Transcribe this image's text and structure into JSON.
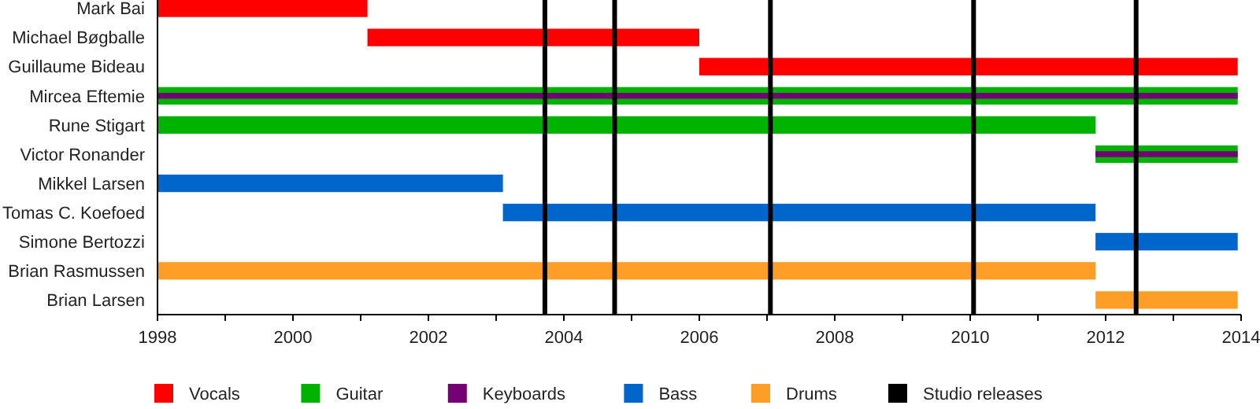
{
  "chart_data": {
    "type": "bar",
    "orientation": "horizontal",
    "categories": [
      "Mark Bai",
      "Michael Bøgballe",
      "Guillaume Bideau",
      "Mircea Eftemie",
      "Rune Stigart",
      "Victor Ronander",
      "Mikkel Larsen",
      "Tomas C. Koefoed",
      "Simone Bertozzi",
      "Brian Rasmussen",
      "Brian Larsen"
    ],
    "series": [
      {
        "name": "Vocals",
        "color": "#ff0000",
        "base": [
          1998,
          2001.1,
          2006,
          null,
          null,
          null,
          null,
          null,
          null,
          null,
          null
        ],
        "values": [
          3.1,
          4.9,
          7.95,
          null,
          null,
          null,
          null,
          null,
          null,
          null,
          null
        ]
      },
      {
        "name": "Guitar",
        "color": "#00b300",
        "base": [
          null,
          null,
          null,
          1998,
          1998,
          2011.85,
          null,
          null,
          null,
          null,
          null
        ],
        "values": [
          null,
          null,
          null,
          15.95,
          13.85,
          2.1,
          null,
          null,
          null,
          null,
          null
        ]
      },
      {
        "name": "Keyboards",
        "color": "#750075",
        "base": [
          null,
          null,
          null,
          1998,
          null,
          2011.85,
          null,
          null,
          null,
          null,
          null
        ],
        "values": [
          null,
          null,
          null,
          15.95,
          null,
          2.1,
          null,
          null,
          null,
          null,
          null
        ]
      },
      {
        "name": "Bass",
        "color": "#0066cc",
        "base": [
          null,
          null,
          null,
          null,
          null,
          null,
          1998,
          2003.1,
          2011.85,
          null,
          null
        ],
        "values": [
          null,
          null,
          null,
          null,
          null,
          null,
          5.1,
          8.75,
          2.1,
          null,
          null
        ]
      },
      {
        "name": "Drums",
        "color": "#ff9e27",
        "base": [
          null,
          null,
          null,
          null,
          null,
          null,
          null,
          null,
          null,
          1998,
          2011.85
        ],
        "values": [
          null,
          null,
          null,
          null,
          null,
          null,
          null,
          null,
          null,
          13.85,
          2.1
        ]
      }
    ],
    "xlim": [
      1998,
      2014
    ],
    "xticks": [
      1998,
      {
        "value": 1999,
        "label": null
      },
      2000,
      {
        "value": 2001,
        "label": null
      },
      2002,
      {
        "value": 2003,
        "label": null
      },
      2004,
      {
        "value": 2005,
        "label": null
      },
      2006,
      {
        "value": 2007,
        "label": null
      },
      2008,
      {
        "value": 2009,
        "label": null
      },
      2010,
      {
        "value": 2011,
        "label": null
      },
      2012,
      {
        "value": 2013,
        "label": null
      },
      2014
    ],
    "ref_lines": [
      {
        "axis": "x",
        "value": 2003.72,
        "label": "Studio releases",
        "color": "#000000"
      },
      {
        "axis": "x",
        "value": 2004.75,
        "color": "#000000"
      },
      {
        "axis": "x",
        "value": 2007.05,
        "color": "#000000"
      },
      {
        "axis": "x",
        "value": 2010.05,
        "color": "#000000"
      },
      {
        "axis": "x",
        "value": 2012.45,
        "color": "#000000"
      }
    ],
    "legend": "bottom",
    "grid": false
  }
}
